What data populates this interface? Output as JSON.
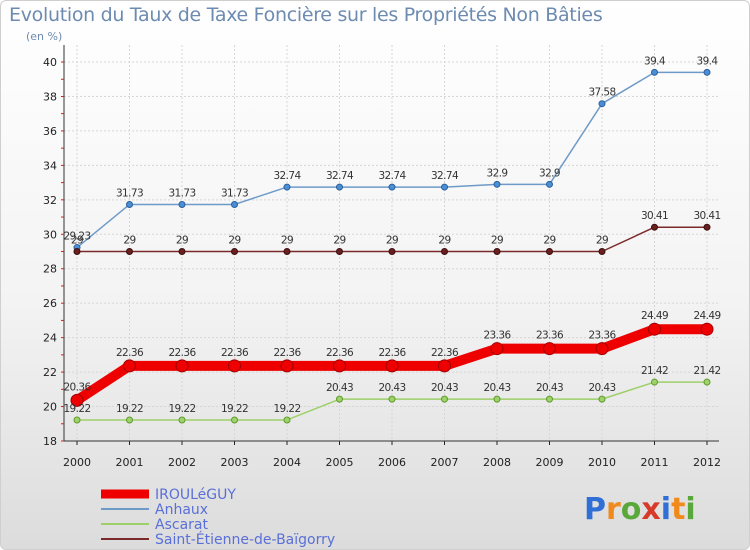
{
  "header": {
    "title": "Evolution du Taux de Taxe Foncière sur les Propriétés Non Bâties",
    "unit": "(en %)"
  },
  "logo_text": "Proxiti",
  "chart_data": {
    "type": "line",
    "title": "Evolution du Taux de Taxe Foncière sur les Propriétés Non Bâties",
    "ylabel": "(en %)",
    "xlabel": "",
    "x": [
      "2000",
      "2001",
      "2002",
      "2003",
      "2004",
      "2005",
      "2006",
      "2007",
      "2008",
      "2009",
      "2010",
      "2011",
      "2012"
    ],
    "ylim": [
      18,
      40
    ],
    "yticks": [
      18,
      20,
      22,
      24,
      26,
      28,
      30,
      32,
      34,
      36,
      38,
      40
    ],
    "grid": true,
    "legend_position": "bottom-left",
    "series": [
      {
        "name": "IROULéGUY",
        "color": "#ee0000",
        "marker_fill": "#ee0000",
        "marker_stroke": "#a00000",
        "emphasis": true,
        "values": [
          20.36,
          22.36,
          22.36,
          22.36,
          22.36,
          22.36,
          22.36,
          22.36,
          23.36,
          23.36,
          23.36,
          24.49,
          24.49
        ],
        "labels": [
          "20.36",
          "22.36",
          "22.36",
          "22.36",
          "22.36",
          "22.36",
          "22.36",
          "22.36",
          "23.36",
          "23.36",
          "23.36",
          "24.49",
          "24.49"
        ]
      },
      {
        "name": "Anhaux",
        "color": "#6e9ac9",
        "marker_fill": "#4a8fd6",
        "marker_stroke": "#2a5f9a",
        "emphasis": false,
        "values": [
          29.23,
          31.73,
          31.73,
          31.73,
          32.74,
          32.74,
          32.74,
          32.74,
          32.9,
          32.9,
          37.58,
          39.4,
          39.4
        ],
        "labels": [
          "29.23",
          "31.73",
          "31.73",
          "31.73",
          "32.74",
          "32.74",
          "32.74",
          "32.74",
          "32.9",
          "32.9",
          "37.58",
          "39.4",
          "39.4"
        ]
      },
      {
        "name": "Ascarat",
        "color": "#9dd06a",
        "marker_fill": "#9ed26c",
        "marker_stroke": "#5f9a2a",
        "emphasis": false,
        "values": [
          19.22,
          19.22,
          19.22,
          19.22,
          19.22,
          20.43,
          20.43,
          20.43,
          20.43,
          20.43,
          20.43,
          21.42,
          21.42
        ],
        "labels": [
          "19.22",
          "19.22",
          "19.22",
          "19.22",
          "19.22",
          "20.43",
          "20.43",
          "20.43",
          "20.43",
          "20.43",
          "20.43",
          "21.42",
          "21.42"
        ]
      },
      {
        "name": "Saint-Étienne-de-Baïgorry",
        "color": "#7a2a2a",
        "marker_fill": "#6b1f1f",
        "marker_stroke": "#3a0f0f",
        "emphasis": false,
        "values": [
          29,
          29,
          29,
          29,
          29,
          29,
          29,
          29,
          29,
          29,
          29,
          30.41,
          30.41
        ],
        "labels": [
          "29",
          "29",
          "29",
          "29",
          "29",
          "29",
          "29",
          "29",
          "29",
          "29",
          "29",
          "30.41",
          "30.41"
        ]
      }
    ]
  }
}
